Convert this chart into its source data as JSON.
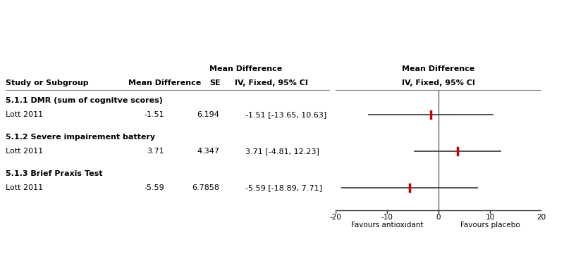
{
  "subgroups": [
    {
      "label": "5.1.1 DMR (sum of cognitve scores)",
      "studies": [
        {
          "name": "Lott 2011",
          "mean": -1.51,
          "se": "6.194",
          "ci_str": "-1.51 [-13.65, 10.63]",
          "lo": -13.65,
          "hi": 10.63
        }
      ]
    },
    {
      "label": "5.1.2 Severe impairement battery",
      "studies": [
        {
          "name": "Lott 2011",
          "mean": 3.71,
          "se": "4.347",
          "ci_str": "3.71 [-4.81, 12.23]",
          "lo": -4.81,
          "hi": 12.23
        }
      ]
    },
    {
      "label": "5.1.3 Brief Praxis Test",
      "studies": [
        {
          "name": "Lott 2011",
          "mean": -5.59,
          "se": "6.7858",
          "ci_str": "-5.59 [-18.89, 7.71]",
          "lo": -18.89,
          "hi": 7.71
        }
      ]
    }
  ],
  "axis_min": -20,
  "axis_max": 20,
  "axis_ticks": [
    -20,
    -10,
    0,
    10,
    20
  ],
  "favours_left": "Favours antioxidant",
  "favours_right": "Favours placebo",
  "header_top_left": "Mean Difference",
  "header_top_right": "Mean Difference",
  "col_study": "Study or Subgroup",
  "col_md": "Mean Difference",
  "col_se": "SE",
  "col_ci_left": "IV, Fixed, 95% CI",
  "col_ci_right": "IV, Fixed, 95% CI",
  "marker_color": "#cc0000",
  "ci_line_color": "#444444",
  "vline_color": "#555555",
  "axis_line_color": "#333333",
  "header_line_color": "#888888",
  "text_color": "#000000",
  "bg_color": "#ffffff",
  "font_size": 8.0,
  "bold_font_size": 8.0
}
